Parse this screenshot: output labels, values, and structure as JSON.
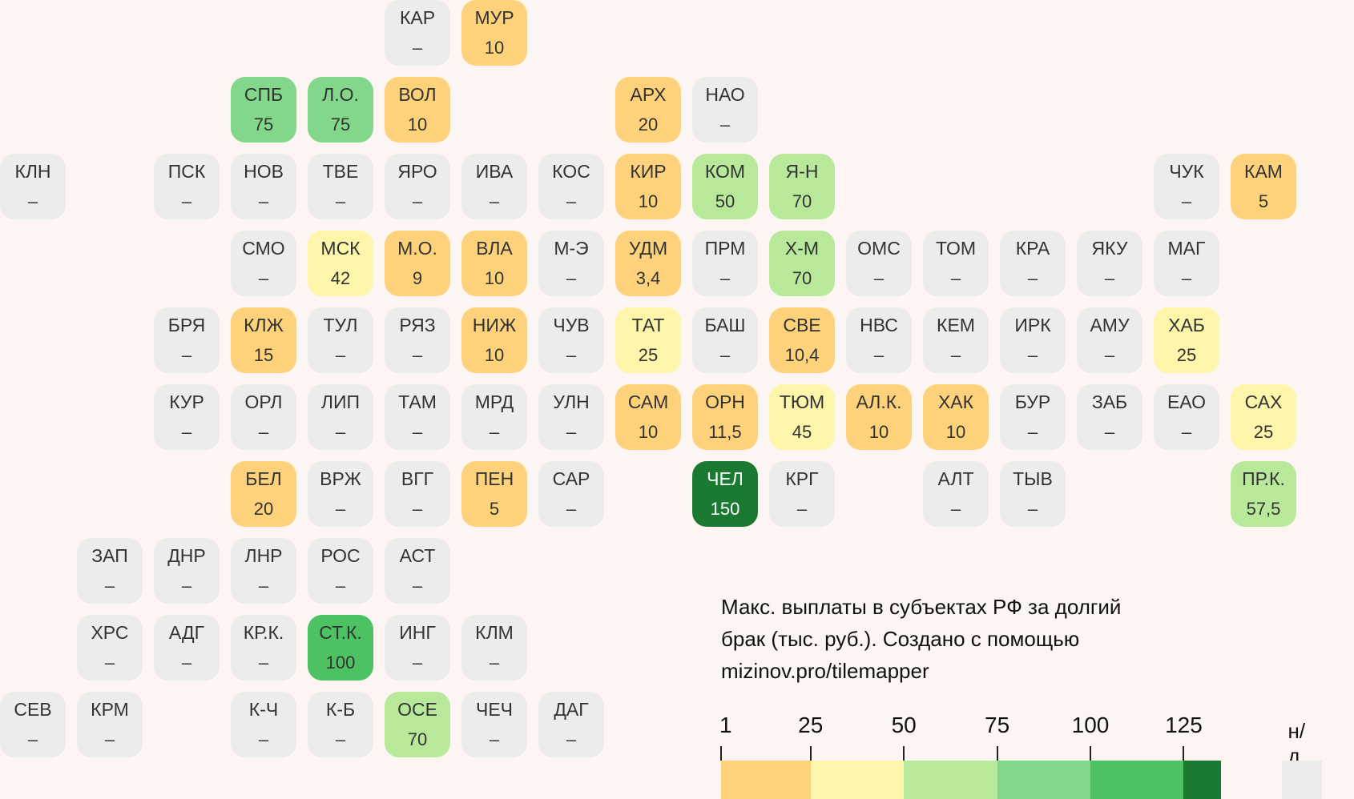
{
  "map": {
    "colors": {
      "nd": "#ececec",
      "b1": "#fdd27a",
      "b2": "#fdf5a9",
      "b3": "#b8e99b",
      "b4": "#83d78b",
      "b5": "#4cc263",
      "b6": "#1b7a32"
    },
    "tiles": [
      {
        "code": "КАР",
        "value": "–",
        "row": 0,
        "col": 5
      },
      {
        "code": "МУР",
        "value": "10",
        "row": 0,
        "col": 6
      },
      {
        "code": "СПБ",
        "value": "75",
        "row": 1,
        "col": 3
      },
      {
        "code": "Л.О.",
        "value": "75",
        "row": 1,
        "col": 4
      },
      {
        "code": "ВОЛ",
        "value": "10",
        "row": 1,
        "col": 5
      },
      {
        "code": "АРХ",
        "value": "20",
        "row": 1,
        "col": 8
      },
      {
        "code": "НАО",
        "value": "–",
        "row": 1,
        "col": 9
      },
      {
        "code": "КЛН",
        "value": "–",
        "row": 2,
        "col": 0
      },
      {
        "code": "ПСК",
        "value": "–",
        "row": 2,
        "col": 2
      },
      {
        "code": "НОВ",
        "value": "–",
        "row": 2,
        "col": 3
      },
      {
        "code": "ТВЕ",
        "value": "–",
        "row": 2,
        "col": 4
      },
      {
        "code": "ЯРО",
        "value": "–",
        "row": 2,
        "col": 5
      },
      {
        "code": "ИВА",
        "value": "–",
        "row": 2,
        "col": 6
      },
      {
        "code": "КОС",
        "value": "–",
        "row": 2,
        "col": 7
      },
      {
        "code": "КИР",
        "value": "10",
        "row": 2,
        "col": 8
      },
      {
        "code": "КОМ",
        "value": "50",
        "row": 2,
        "col": 9
      },
      {
        "code": "Я-Н",
        "value": "70",
        "row": 2,
        "col": 10
      },
      {
        "code": "ЧУК",
        "value": "–",
        "row": 2,
        "col": 15
      },
      {
        "code": "КАМ",
        "value": "5",
        "row": 2,
        "col": 16
      },
      {
        "code": "СМО",
        "value": "–",
        "row": 3,
        "col": 3
      },
      {
        "code": "МСК",
        "value": "42",
        "row": 3,
        "col": 4
      },
      {
        "code": "М.О.",
        "value": "9",
        "row": 3,
        "col": 5
      },
      {
        "code": "ВЛА",
        "value": "10",
        "row": 3,
        "col": 6
      },
      {
        "code": "М-Э",
        "value": "–",
        "row": 3,
        "col": 7
      },
      {
        "code": "УДМ",
        "value": "3,4",
        "row": 3,
        "col": 8
      },
      {
        "code": "ПРМ",
        "value": "–",
        "row": 3,
        "col": 9
      },
      {
        "code": "Х-М",
        "value": "70",
        "row": 3,
        "col": 10
      },
      {
        "code": "ОМС",
        "value": "–",
        "row": 3,
        "col": 11
      },
      {
        "code": "ТОМ",
        "value": "–",
        "row": 3,
        "col": 12
      },
      {
        "code": "КРА",
        "value": "–",
        "row": 3,
        "col": 13
      },
      {
        "code": "ЯКУ",
        "value": "–",
        "row": 3,
        "col": 14
      },
      {
        "code": "МАГ",
        "value": "–",
        "row": 3,
        "col": 15
      },
      {
        "code": "БРЯ",
        "value": "–",
        "row": 4,
        "col": 2
      },
      {
        "code": "КЛЖ",
        "value": "15",
        "row": 4,
        "col": 3
      },
      {
        "code": "ТУЛ",
        "value": "–",
        "row": 4,
        "col": 4
      },
      {
        "code": "РЯЗ",
        "value": "–",
        "row": 4,
        "col": 5
      },
      {
        "code": "НИЖ",
        "value": "10",
        "row": 4,
        "col": 6
      },
      {
        "code": "ЧУВ",
        "value": "–",
        "row": 4,
        "col": 7
      },
      {
        "code": "ТАТ",
        "value": "25",
        "row": 4,
        "col": 8
      },
      {
        "code": "БАШ",
        "value": "–",
        "row": 4,
        "col": 9
      },
      {
        "code": "СВЕ",
        "value": "10,4",
        "row": 4,
        "col": 10
      },
      {
        "code": "НВС",
        "value": "–",
        "row": 4,
        "col": 11
      },
      {
        "code": "КЕМ",
        "value": "–",
        "row": 4,
        "col": 12
      },
      {
        "code": "ИРК",
        "value": "–",
        "row": 4,
        "col": 13
      },
      {
        "code": "АМУ",
        "value": "–",
        "row": 4,
        "col": 14
      },
      {
        "code": "ХАБ",
        "value": "25",
        "row": 4,
        "col": 15
      },
      {
        "code": "КУР",
        "value": "–",
        "row": 5,
        "col": 2
      },
      {
        "code": "ОРЛ",
        "value": "–",
        "row": 5,
        "col": 3
      },
      {
        "code": "ЛИП",
        "value": "–",
        "row": 5,
        "col": 4
      },
      {
        "code": "ТАМ",
        "value": "–",
        "row": 5,
        "col": 5
      },
      {
        "code": "МРД",
        "value": "–",
        "row": 5,
        "col": 6
      },
      {
        "code": "УЛН",
        "value": "–",
        "row": 5,
        "col": 7
      },
      {
        "code": "САМ",
        "value": "10",
        "row": 5,
        "col": 8
      },
      {
        "code": "ОРН",
        "value": "11,5",
        "row": 5,
        "col": 9
      },
      {
        "code": "ТЮМ",
        "value": "45",
        "row": 5,
        "col": 10
      },
      {
        "code": "АЛ.К.",
        "value": "10",
        "row": 5,
        "col": 11
      },
      {
        "code": "ХАК",
        "value": "10",
        "row": 5,
        "col": 12
      },
      {
        "code": "БУР",
        "value": "–",
        "row": 5,
        "col": 13
      },
      {
        "code": "ЗАБ",
        "value": "–",
        "row": 5,
        "col": 14
      },
      {
        "code": "ЕАО",
        "value": "–",
        "row": 5,
        "col": 15
      },
      {
        "code": "САХ",
        "value": "25",
        "row": 5,
        "col": 16
      },
      {
        "code": "БЕЛ",
        "value": "20",
        "row": 6,
        "col": 3
      },
      {
        "code": "ВРЖ",
        "value": "–",
        "row": 6,
        "col": 4
      },
      {
        "code": "ВГГ",
        "value": "–",
        "row": 6,
        "col": 5
      },
      {
        "code": "ПЕН",
        "value": "5",
        "row": 6,
        "col": 6
      },
      {
        "code": "САР",
        "value": "–",
        "row": 6,
        "col": 7
      },
      {
        "code": "ЧЕЛ",
        "value": "150",
        "row": 6,
        "col": 9
      },
      {
        "code": "КРГ",
        "value": "–",
        "row": 6,
        "col": 10
      },
      {
        "code": "АЛТ",
        "value": "–",
        "row": 6,
        "col": 12
      },
      {
        "code": "ТЫВ",
        "value": "–",
        "row": 6,
        "col": 13
      },
      {
        "code": "ПР.К.",
        "value": "57,5",
        "row": 6,
        "col": 16
      },
      {
        "code": "ЗАП",
        "value": "–",
        "row": 7,
        "col": 1
      },
      {
        "code": "ДНР",
        "value": "–",
        "row": 7,
        "col": 2
      },
      {
        "code": "ЛНР",
        "value": "–",
        "row": 7,
        "col": 3
      },
      {
        "code": "РОС",
        "value": "–",
        "row": 7,
        "col": 4
      },
      {
        "code": "АСТ",
        "value": "–",
        "row": 7,
        "col": 5
      },
      {
        "code": "ХРС",
        "value": "–",
        "row": 8,
        "col": 1
      },
      {
        "code": "АДГ",
        "value": "–",
        "row": 8,
        "col": 2
      },
      {
        "code": "КР.К.",
        "value": "–",
        "row": 8,
        "col": 3
      },
      {
        "code": "СТ.К.",
        "value": "100",
        "row": 8,
        "col": 4
      },
      {
        "code": "ИНГ",
        "value": "–",
        "row": 8,
        "col": 5
      },
      {
        "code": "КЛМ",
        "value": "–",
        "row": 8,
        "col": 6
      },
      {
        "code": "СЕВ",
        "value": "–",
        "row": 9,
        "col": 0
      },
      {
        "code": "КРМ",
        "value": "–",
        "row": 9,
        "col": 1
      },
      {
        "code": "К-Ч",
        "value": "–",
        "row": 9,
        "col": 3
      },
      {
        "code": "К-Б",
        "value": "–",
        "row": 9,
        "col": 4
      },
      {
        "code": "ОСЕ",
        "value": "70",
        "row": 9,
        "col": 5
      },
      {
        "code": "ЧЕЧ",
        "value": "–",
        "row": 9,
        "col": 6
      },
      {
        "code": "ДАГ",
        "value": "–",
        "row": 9,
        "col": 7
      }
    ]
  },
  "legend": {
    "title": "Макс. выплаты в субъектах РФ за долгий брак (тыс. руб.). Создано с помощью mizinov.pro/tilemapper",
    "ticks": [
      "1",
      "25",
      "50",
      "75",
      "100",
      "125"
    ],
    "tick_values": [
      1,
      25,
      50,
      75,
      100,
      125
    ],
    "max_value": 135,
    "bands": [
      {
        "from": 1,
        "to": 25,
        "color": "#fdd27a"
      },
      {
        "from": 25,
        "to": 50,
        "color": "#fdf5a9"
      },
      {
        "from": 50,
        "to": 75,
        "color": "#b8e99b"
      },
      {
        "from": 75,
        "to": 100,
        "color": "#83d78b"
      },
      {
        "from": 100,
        "to": 125,
        "color": "#4cc263"
      },
      {
        "from": 125,
        "to": 135,
        "color": "#1b7a32"
      }
    ],
    "nd_label": "н/д"
  }
}
